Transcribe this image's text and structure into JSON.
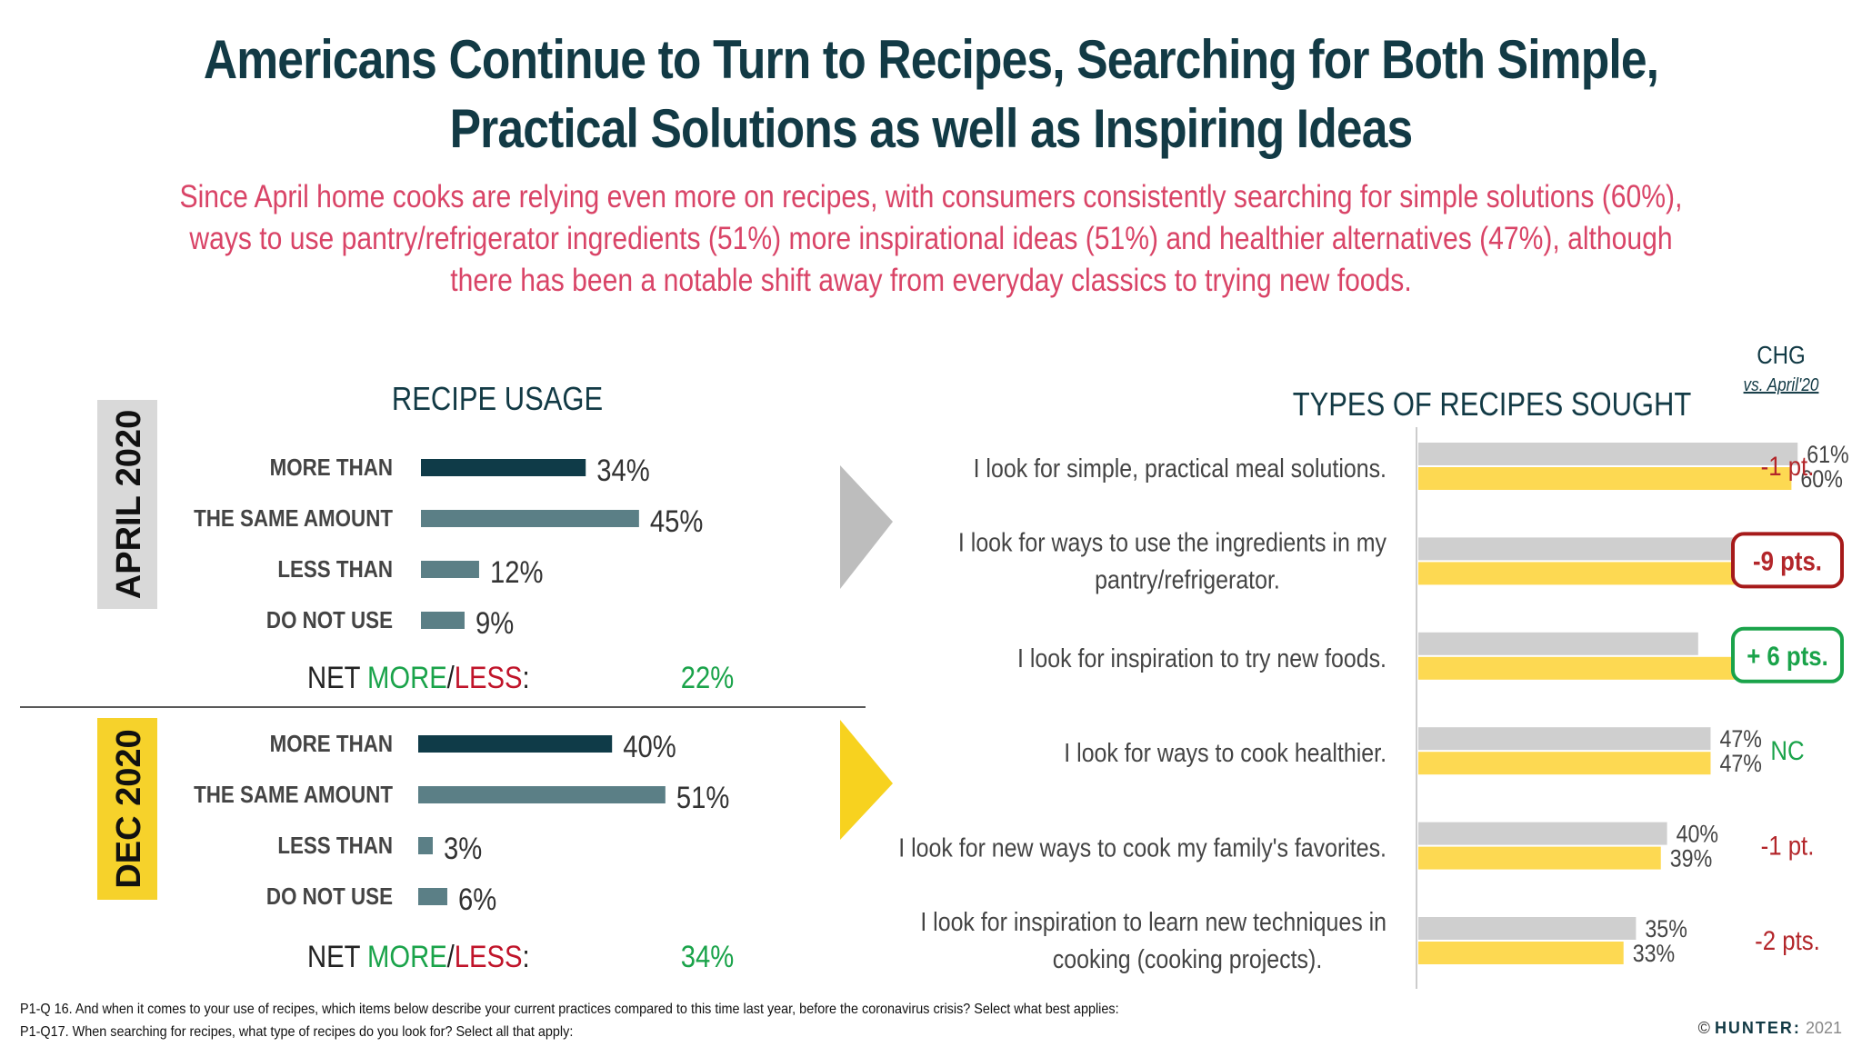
{
  "header": {
    "title_line1": "Americans Continue to Turn to Recipes, Searching for Both Simple,",
    "title_line2": "Practical Solutions as well as Inspiring Ideas",
    "subtitle": "Since April home cooks are relying even more on recipes, with consumers consistently searching for simple solutions (60%), ways to use pantry/refrigerator ingredients (51%) more inspirational ideas (51%) and healthier alternatives (47%), although there has been a notable shift away from everyday classics to trying new foods."
  },
  "colors": {
    "dark_teal": "#0f3b48",
    "slate": "#5b7f86",
    "gray_bar": "#cfcfcf",
    "yellow_bar": "#fdd952",
    "green": "#1aa34a",
    "red": "#c0142a",
    "title": "#123a45",
    "subtitle": "#d94467",
    "gray_badge": "#d9d9d9",
    "yellow_badge": "#f6d22b"
  },
  "chart_data": [
    {
      "type": "bar",
      "orientation": "horizontal",
      "title": "RECIPE USAGE",
      "panels": [
        {
          "label": "APRIL 2020",
          "categories": [
            "MORE THAN",
            "THE SAME AMOUNT",
            "LESS THAN",
            "DO NOT USE"
          ],
          "values": [
            34,
            45,
            12,
            9
          ],
          "value_labels": [
            "34%",
            "45%",
            "12%",
            "9%"
          ],
          "net_label": "NET",
          "net_more": "MORE",
          "net_sep": "/",
          "net_less": "LESS",
          "net_colon": ":",
          "net_value": "22%"
        },
        {
          "label": "DEC 2020",
          "categories": [
            "MORE THAN",
            "THE SAME AMOUNT",
            "LESS THAN",
            "DO NOT USE"
          ],
          "values": [
            40,
            51,
            3,
            6
          ],
          "value_labels": [
            "40%",
            "51%",
            "3%",
            "6%"
          ],
          "net_label": "NET",
          "net_more": "MORE",
          "net_sep": "/",
          "net_less": "LESS",
          "net_colon": ":",
          "net_value": "34%"
        }
      ]
    },
    {
      "type": "bar",
      "orientation": "horizontal",
      "title": "TYPES OF RECIPES SOUGHT",
      "change_header": "CHG",
      "change_subheader": "vs. April'20",
      "categories": [
        [
          "I look for simple, practical meal solutions."
        ],
        [
          "I look for ways to use the ingredients in my",
          "pantry/refrigerator."
        ],
        [
          "I look for inspiration to try new foods."
        ],
        [
          "I look for ways to cook healthier."
        ],
        [
          "I look for new ways to cook my family's favorites."
        ],
        [
          "I look for inspiration to learn new techniques in",
          "cooking (cooking projects)."
        ]
      ],
      "series": [
        {
          "values": [
            61,
            60,
            45,
            47,
            40,
            35
          ],
          "labels": [
            "61%",
            "60%",
            "45%",
            "47%",
            "40%",
            "35%"
          ]
        },
        {
          "values": [
            60,
            51,
            51,
            47,
            39,
            33
          ],
          "labels": [
            "60%",
            "51%",
            "51%",
            "47%",
            "39%",
            "33%"
          ]
        }
      ],
      "changes": [
        {
          "text": "-1 pt.",
          "style": "red"
        },
        {
          "text": "-9 pts.",
          "style": "red-box"
        },
        {
          "text": "+ 6 pts.",
          "style": "green-box"
        },
        {
          "text": "NC",
          "style": "green"
        },
        {
          "text": "-1 pt.",
          "style": "red"
        },
        {
          "text": "-2 pts.",
          "style": "red"
        }
      ]
    }
  ],
  "footnotes": {
    "q16": "P1-Q 16. And when it comes to your use of recipes, which items below describe your current practices compared to this time last year, before the coronavirus crisis? Select what best applies:",
    "q17": "P1-Q17. When searching for recipes, what type of recipes do you look for? Select all that apply:"
  },
  "logo": {
    "copyright": "©",
    "brand": "HUNTER:",
    "year": "2021"
  }
}
